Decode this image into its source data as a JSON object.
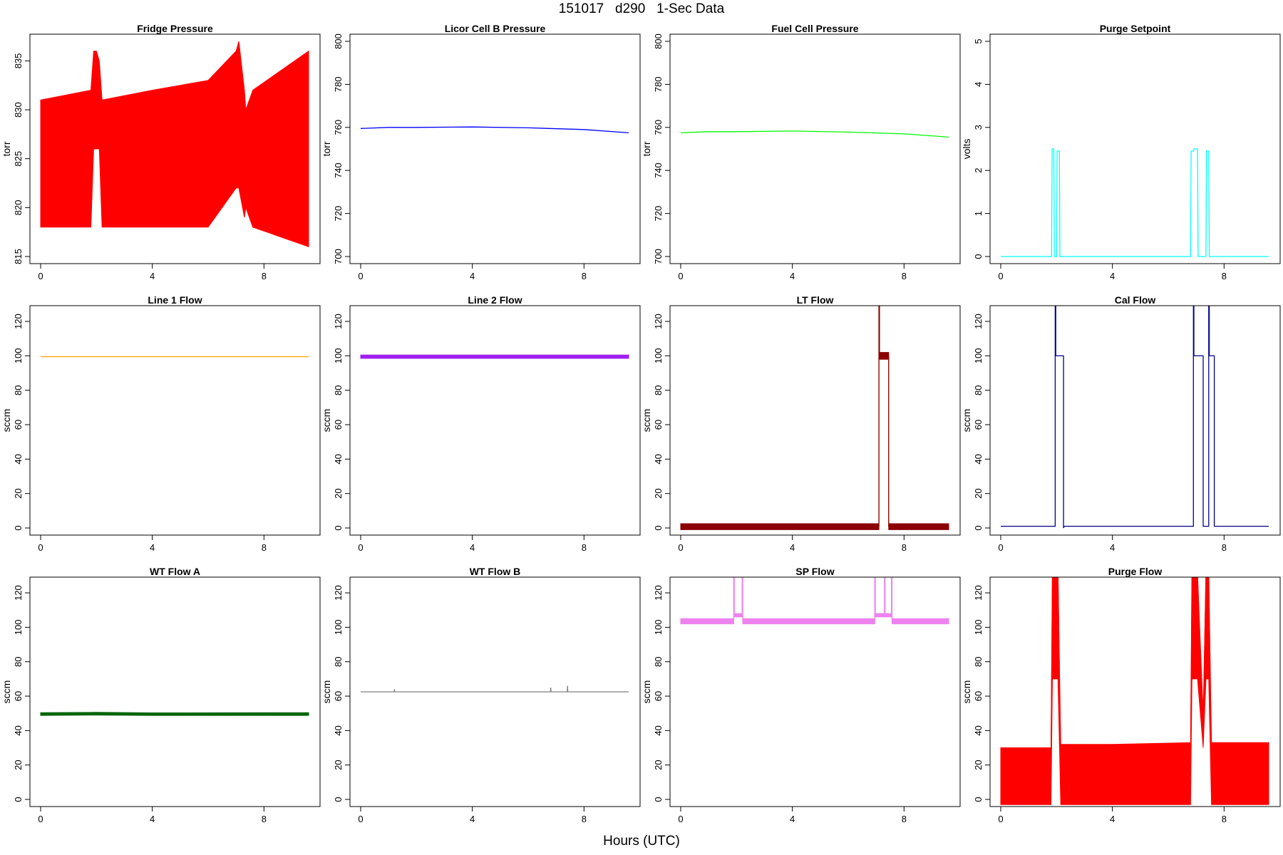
{
  "figure": {
    "title": "151017   d290   1-Sec Data",
    "xlabel": "Hours (UTC)"
  },
  "chart_data": [
    {
      "type": "line",
      "title": "Fridge Pressure",
      "ylabel": "torr",
      "color": "#ff0000",
      "xlim": [
        0,
        9.6
      ],
      "ylim": [
        815,
        837
      ],
      "xticks": [
        0,
        4,
        8
      ],
      "yticks": [
        815,
        820,
        825,
        830,
        835
      ],
      "series": [
        {
          "x": [
            0,
            1.8,
            1.9,
            2.0,
            2.1,
            2.2,
            4,
            6,
            7.0,
            7.1,
            7.3,
            7.35,
            7.6,
            9.6
          ],
          "y": [
            825,
            825,
            831,
            833,
            832,
            825,
            825,
            825,
            829,
            831,
            825,
            823,
            823,
            824
          ],
          "band_min": [
            818,
            818,
            826,
            826,
            826,
            818,
            818,
            818,
            822,
            822,
            819,
            820,
            818,
            816
          ],
          "band_max": [
            831,
            832,
            836,
            836,
            835,
            831,
            832,
            833,
            836,
            837,
            832,
            830,
            832,
            836
          ]
        }
      ]
    },
    {
      "type": "line",
      "title": "Licor Cell B Pressure",
      "ylabel": "torr",
      "color": "#0000ff",
      "xlim": [
        0,
        9.6
      ],
      "ylim": [
        700,
        800
      ],
      "xticks": [
        0,
        4,
        8
      ],
      "yticks": [
        700,
        720,
        740,
        760,
        780,
        800
      ],
      "series": [
        {
          "x": [
            0,
            1,
            2,
            4,
            6,
            8,
            9.6
          ],
          "y": [
            759.5,
            760,
            760,
            760.2,
            759.8,
            759,
            757.5
          ]
        }
      ]
    },
    {
      "type": "line",
      "title": "Fuel Cell Pressure",
      "ylabel": "torr",
      "color": "#00ff00",
      "xlim": [
        0,
        9.6
      ],
      "ylim": [
        700,
        800
      ],
      "xticks": [
        0,
        4,
        8
      ],
      "yticks": [
        700,
        720,
        740,
        760,
        780,
        800
      ],
      "series": [
        {
          "x": [
            0,
            1,
            2,
            4,
            6,
            8,
            9.6
          ],
          "y": [
            757.5,
            758,
            758,
            758.3,
            757.8,
            757,
            755.5
          ]
        }
      ]
    },
    {
      "type": "line",
      "title": "Purge Setpoint",
      "ylabel": "volts",
      "color": "#00ffff",
      "xlim": [
        0,
        9.6
      ],
      "ylim": [
        0,
        5
      ],
      "xticks": [
        0,
        4,
        8
      ],
      "yticks": [
        0,
        1,
        2,
        3,
        4,
        5
      ],
      "series": [
        {
          "x": [
            0,
            1.82,
            1.84,
            1.9,
            1.92,
            2.0,
            2.02,
            2.1,
            2.12,
            6.8,
            6.82,
            6.9,
            6.92,
            7.05,
            7.07,
            7.35,
            7.37,
            7.45,
            7.47,
            9.6
          ],
          "y": [
            0,
            0,
            2.5,
            2.5,
            0,
            0,
            2.45,
            2.45,
            0,
            0,
            2.45,
            2.45,
            2.5,
            2.5,
            0,
            0,
            2.45,
            2.45,
            0,
            0
          ]
        }
      ]
    },
    {
      "type": "line",
      "title": "Line 1 Flow",
      "ylabel": "sccm",
      "color": "#ffa500",
      "xlim": [
        0,
        9.6
      ],
      "ylim": [
        0,
        125
      ],
      "xticks": [
        0,
        4,
        8
      ],
      "yticks": [
        0,
        20,
        40,
        60,
        80,
        100,
        120
      ],
      "series": [
        {
          "x": [
            0,
            9.6
          ],
          "y": [
            99.5,
            99.5
          ]
        }
      ]
    },
    {
      "type": "line",
      "title": "Line 2 Flow",
      "ylabel": "sccm",
      "color": "#a020f0",
      "xlim": [
        0,
        9.6
      ],
      "ylim": [
        0,
        125
      ],
      "xticks": [
        0,
        4,
        8
      ],
      "yticks": [
        0,
        20,
        40,
        60,
        80,
        100,
        120
      ],
      "series": [
        {
          "x": [
            0,
            9.6
          ],
          "y": [
            99.5,
            99.5
          ],
          "band_min": [
            98.5,
            98.5
          ],
          "band_max": [
            100.5,
            100.5
          ]
        }
      ]
    },
    {
      "type": "line",
      "title": "LT Flow",
      "ylabel": "sccm",
      "color": "#8b0000",
      "xlim": [
        0,
        9.6
      ],
      "ylim": [
        0,
        125
      ],
      "xticks": [
        0,
        4,
        8
      ],
      "yticks": [
        0,
        20,
        40,
        60,
        80,
        100,
        120
      ],
      "series": [
        {
          "x": [
            0,
            7.1,
            7.1,
            7.12,
            7.12,
            7.45,
            7.45,
            9.6
          ],
          "y": [
            1,
            1,
            130,
            130,
            100,
            100,
            1,
            1
          ],
          "band_min": [
            -1,
            -1,
            98,
            98,
            98,
            98,
            -1,
            -1
          ],
          "band_max": [
            2.5,
            2.5,
            102,
            102,
            102,
            102,
            2.5,
            2.5
          ]
        }
      ]
    },
    {
      "type": "line",
      "title": "Cal Flow",
      "ylabel": "sccm",
      "color": "#00008b",
      "xlim": [
        0,
        9.6
      ],
      "ylim": [
        0,
        125
      ],
      "xticks": [
        0,
        4,
        8
      ],
      "yticks": [
        0,
        20,
        40,
        60,
        80,
        100,
        120
      ],
      "series": [
        {
          "x": [
            0,
            1.95,
            1.95,
            1.97,
            1.97,
            2.25,
            2.25,
            2.27,
            6.9,
            6.9,
            6.92,
            6.92,
            7.25,
            7.25,
            7.45,
            7.45,
            7.47,
            7.47,
            7.65,
            7.65,
            9.6
          ],
          "y": [
            1,
            1,
            130,
            130,
            100,
            100,
            0,
            1,
            1,
            130,
            130,
            100,
            100,
            1,
            1,
            130,
            130,
            100,
            100,
            1,
            1
          ]
        }
      ]
    },
    {
      "type": "line",
      "title": "WT Flow A",
      "ylabel": "sccm",
      "color": "#006400",
      "xlim": [
        0,
        9.6
      ],
      "ylim": [
        0,
        125
      ],
      "xticks": [
        0,
        4,
        8
      ],
      "yticks": [
        0,
        20,
        40,
        60,
        80,
        100,
        120
      ],
      "series": [
        {
          "x": [
            0,
            2,
            4,
            9.6
          ],
          "y": [
            49.5,
            50,
            49.5,
            49.5
          ],
          "band_min": [
            48.8,
            49,
            48.8,
            48.8
          ],
          "band_max": [
            50.4,
            50.6,
            50.3,
            50.4
          ]
        }
      ]
    },
    {
      "type": "line",
      "title": "WT Flow B",
      "ylabel": "sccm",
      "color": "#808080",
      "xlim": [
        0,
        9.6
      ],
      "ylim": [
        0,
        125
      ],
      "xticks": [
        0,
        4,
        8
      ],
      "yticks": [
        0,
        20,
        40,
        60,
        80,
        100,
        120
      ],
      "series": [
        {
          "x": [
            0,
            1.2,
            1.21,
            1.22,
            6.8,
            6.81,
            6.82,
            7.4,
            7.41,
            7.42,
            9.6
          ],
          "y": [
            62.5,
            62.5,
            64,
            62.5,
            62.5,
            65,
            62.5,
            62.5,
            66,
            62.5,
            62.5
          ]
        }
      ]
    },
    {
      "type": "line",
      "title": "SP Flow",
      "ylabel": "sccm",
      "color": "#ee82ee",
      "xlim": [
        0,
        9.6
      ],
      "ylim": [
        0,
        125
      ],
      "xticks": [
        0,
        4,
        8
      ],
      "yticks": [
        0,
        20,
        40,
        60,
        80,
        100,
        120
      ],
      "series": [
        {
          "x": [
            0,
            1.9,
            1.9,
            1.92,
            1.92,
            2.2,
            2.2,
            2.22,
            2.22,
            6.95,
            6.95,
            6.97,
            6.97,
            7.3,
            7.3,
            7.32,
            7.32,
            7.55,
            7.55,
            7.57,
            7.57,
            9.6
          ],
          "y": [
            103.5,
            103.5,
            130,
            130,
            107,
            107,
            130,
            130,
            103.5,
            103.5,
            130,
            130,
            107,
            107,
            130,
            130,
            107,
            107,
            130,
            130,
            103.5,
            103.5
          ],
          "band_min": [
            102,
            102,
            null,
            null,
            106,
            106,
            null,
            null,
            102,
            102,
            null,
            null,
            106,
            106,
            null,
            null,
            106,
            106,
            null,
            null,
            102,
            102
          ],
          "band_max": [
            105,
            105,
            null,
            null,
            108,
            108,
            null,
            null,
            105,
            105,
            null,
            null,
            108,
            108,
            null,
            null,
            108,
            108,
            null,
            null,
            105,
            105
          ]
        }
      ]
    },
    {
      "type": "line",
      "title": "Purge Flow",
      "ylabel": "sccm",
      "color": "#ff0000",
      "xlim": [
        0,
        9.6
      ],
      "ylim": [
        0,
        125
      ],
      "xticks": [
        0,
        4,
        8
      ],
      "yticks": [
        0,
        20,
        40,
        60,
        80,
        100,
        120
      ],
      "series": [
        {
          "x": [
            0,
            1.8,
            1.85,
            1.95,
            2.05,
            2.15,
            4,
            6.8,
            6.85,
            7.0,
            7.05,
            7.25,
            7.35,
            7.45,
            7.55,
            9.6
          ],
          "y": [
            15,
            15,
            130,
            130,
            130,
            15,
            15,
            15,
            130,
            130,
            130,
            40,
            130,
            130,
            15,
            15
          ],
          "band_min": [
            -3,
            -3,
            70,
            70,
            70,
            -3,
            -3,
            -3,
            70,
            70,
            70,
            30,
            70,
            70,
            -3,
            -3
          ],
          "band_max": [
            30,
            30,
            130,
            130,
            130,
            32,
            32,
            33,
            130,
            130,
            130,
            50,
            130,
            130,
            33,
            33
          ]
        }
      ]
    }
  ]
}
